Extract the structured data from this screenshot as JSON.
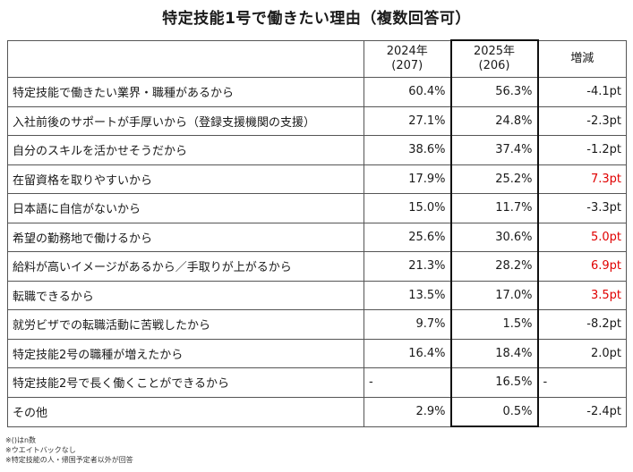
{
  "title": "特定技能1号で働きたい理由（複数回答可）",
  "chart_data": {
    "type": "table",
    "title": "特定技能1号で働きたい理由（複数回答可）",
    "columns": [
      {
        "year": "2024年",
        "n": "(207)"
      },
      {
        "year": "2025年",
        "n": "(206)"
      },
      {
        "label": "増減"
      }
    ],
    "rows": [
      {
        "label": "特定技能で働きたい業界・職種があるから",
        "v2024": "60.4%",
        "v2025": "56.3%",
        "diff": "-4.1pt",
        "highlight": false
      },
      {
        "label": "入社前後のサポートが手厚いから（登録支援機関の支援）",
        "v2024": "27.1%",
        "v2025": "24.8%",
        "diff": "-2.3pt",
        "highlight": false
      },
      {
        "label": "自分のスキルを活かせそうだから",
        "v2024": "38.6%",
        "v2025": "37.4%",
        "diff": "-1.2pt",
        "highlight": false
      },
      {
        "label": "在留資格を取りやすいから",
        "v2024": "17.9%",
        "v2025": "25.2%",
        "diff": "7.3pt",
        "highlight": true
      },
      {
        "label": "日本語に自信がないから",
        "v2024": "15.0%",
        "v2025": "11.7%",
        "diff": "-3.3pt",
        "highlight": false
      },
      {
        "label": "希望の勤務地で働けるから",
        "v2024": "25.6%",
        "v2025": "30.6%",
        "diff": "5.0pt",
        "highlight": true
      },
      {
        "label": "給料が高いイメージがあるから／手取りが上がるから",
        "v2024": "21.3%",
        "v2025": "28.2%",
        "diff": "6.9pt",
        "highlight": true
      },
      {
        "label": "転職できるから",
        "v2024": "13.5%",
        "v2025": "17.0%",
        "diff": "3.5pt",
        "highlight": true
      },
      {
        "label": "就労ビザでの転職活動に苦戦したから",
        "v2024": "9.7%",
        "v2025": "1.5%",
        "diff": "-8.2pt",
        "highlight": false
      },
      {
        "label": "特定技能2号の職種が増えたから",
        "v2024": "16.4%",
        "v2025": "18.4%",
        "diff": "2.0pt",
        "highlight": false
      },
      {
        "label": "特定技能2号で長く働くことができるから",
        "v2024": "-",
        "v2025": "16.5%",
        "diff": "-",
        "highlight": false
      },
      {
        "label": "その他",
        "v2024": "2.9%",
        "v2025": "0.5%",
        "diff": "-2.4pt",
        "highlight": false
      }
    ],
    "highlight_color": "#e00000"
  },
  "notes": [
    "※()はn数",
    "※ウエイトバックなし",
    "※特定技能の人・帰国予定者以外が回答"
  ]
}
